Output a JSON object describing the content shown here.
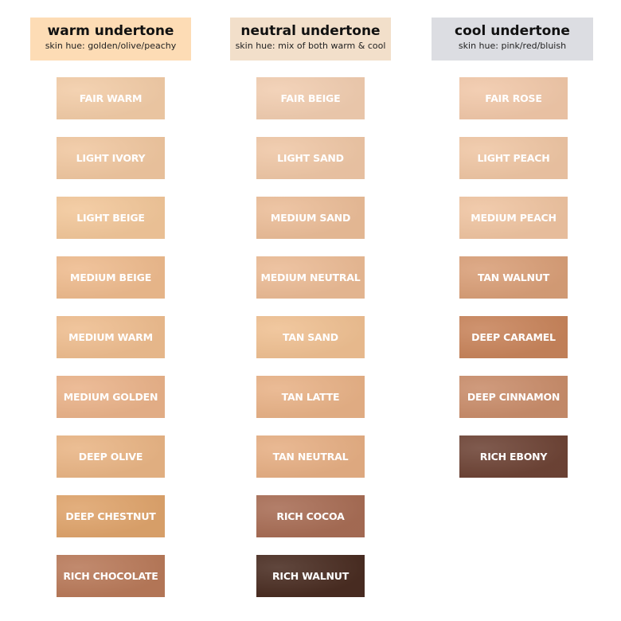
{
  "columns": [
    {
      "title": "warm undertone",
      "subtitle": "skin hue: golden/olive/peachy",
      "header_color": "#fddcb5",
      "shades": [
        {
          "name": "FAIR WARM",
          "color": "#f2cca7"
        },
        {
          "name": "LIGHT IVORY",
          "color": "#f0c7a0"
        },
        {
          "name": "LIGHT BEIGE",
          "color": "#f2c79a"
        },
        {
          "name": "MEDIUM BEIGE",
          "color": "#eebb8e"
        },
        {
          "name": "MEDIUM WARM",
          "color": "#eebd8f"
        },
        {
          "name": "MEDIUM GOLDEN",
          "color": "#eab38a"
        },
        {
          "name": "DEEP OLIVE",
          "color": "#e9b585"
        },
        {
          "name": "DEEP CHESTNUT",
          "color": "#dfa46c"
        },
        {
          "name": "RICH CHOCOLATE",
          "color": "#b97a5a"
        }
      ]
    },
    {
      "title": "neutral undertone",
      "subtitle": "skin hue: mix of both warm & cool",
      "header_color": "#f2dfca",
      "shades": [
        {
          "name": "FAIR BEIGE",
          "color": "#f1cdb0"
        },
        {
          "name": "LIGHT SAND",
          "color": "#efc7a6"
        },
        {
          "name": "MEDIUM SAND",
          "color": "#ebbd98"
        },
        {
          "name": "MEDIUM NEUTRAL",
          "color": "#ebbb95"
        },
        {
          "name": "TAN SAND",
          "color": "#efc092"
        },
        {
          "name": "TAN LATTE",
          "color": "#e8b287"
        },
        {
          "name": "TAN NEUTRAL",
          "color": "#e6af84"
        },
        {
          "name": "RICH COCOA",
          "color": "#a86d55"
        },
        {
          "name": "RICH WALNUT",
          "color": "#4a2d22"
        }
      ]
    },
    {
      "title": "cool undertone",
      "subtitle": "skin hue: pink/red/bluish",
      "header_color": "#dcdde2",
      "shades": [
        {
          "name": "FAIR ROSE",
          "color": "#f1c8a9"
        },
        {
          "name": "LIGHT PEACH",
          "color": "#efc6a4"
        },
        {
          "name": "MEDIUM PEACH",
          "color": "#efc4a1"
        },
        {
          "name": "TAN WALNUT",
          "color": "#d99f78"
        },
        {
          "name": "DEEP CARAMEL",
          "color": "#c8845b"
        },
        {
          "name": "DEEP CINNAMON",
          "color": "#c98d6b"
        },
        {
          "name": "RICH EBONY",
          "color": "#6e4436"
        }
      ]
    }
  ]
}
